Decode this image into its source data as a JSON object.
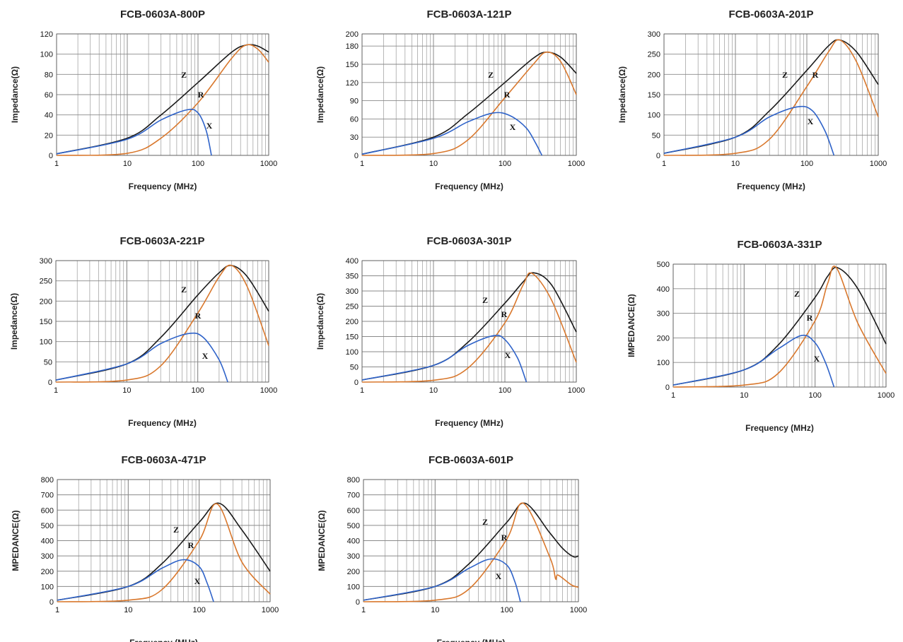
{
  "chart_data": [
    {
      "type": "line",
      "title": "FCB-0603A-800P",
      "xlabel": "Frequency (MHz)",
      "ylabel": "Impedance(Ω)",
      "x_scale": "log",
      "xlim": [
        1,
        1000
      ],
      "ylim": [
        0,
        120
      ],
      "xticks": [
        1,
        10,
        100,
        1000
      ],
      "yticks": [
        0,
        20,
        40,
        60,
        80,
        100,
        120
      ],
      "grid": true,
      "series": [
        {
          "name": "Z",
          "color": "#1a1a1a",
          "x": [
            1,
            10,
            30,
            100,
            300,
            480,
            700,
            1000
          ],
          "y": [
            1.5,
            17,
            40,
            72,
            102,
            109,
            108,
            102
          ]
        },
        {
          "name": "R",
          "color": "#d9782d",
          "x": [
            1,
            10,
            30,
            100,
            300,
            480,
            700,
            1000
          ],
          "y": [
            0,
            2,
            17,
            52,
            96,
            109,
            105,
            92
          ]
        },
        {
          "name": "X",
          "color": "#2f63c9",
          "x": [
            1,
            10,
            30,
            70,
            100,
            130,
            155
          ],
          "y": [
            1.5,
            16,
            35,
            45,
            42,
            25,
            0
          ]
        }
      ]
    },
    {
      "type": "line",
      "title": "FCB-0603A-121P",
      "xlabel": "Frequency (MHz)",
      "ylabel": "Impedance(Ω)",
      "x_scale": "log",
      "xlim": [
        1,
        1000
      ],
      "ylim": [
        0,
        200
      ],
      "xticks": [
        1,
        10,
        100,
        1000
      ],
      "yticks": [
        0,
        30,
        60,
        90,
        120,
        150,
        180,
        200
      ],
      "grid": true,
      "series": [
        {
          "name": "Z",
          "color": "#1a1a1a",
          "x": [
            1,
            10,
            30,
            100,
            250,
            380,
            600,
            1000
          ],
          "y": [
            2,
            30,
            68,
            120,
            160,
            170,
            162,
            135
          ]
        },
        {
          "name": "R",
          "color": "#d9782d",
          "x": [
            1,
            10,
            30,
            100,
            250,
            380,
            600,
            1000
          ],
          "y": [
            0,
            3,
            25,
            95,
            150,
            170,
            155,
            100
          ]
        },
        {
          "name": "X",
          "color": "#2f63c9",
          "x": [
            1,
            10,
            30,
            70,
            120,
            200,
            270,
            330
          ],
          "y": [
            2,
            28,
            55,
            70,
            65,
            45,
            20,
            0
          ]
        }
      ]
    },
    {
      "type": "line",
      "title": "FCB-0603A-201P",
      "xlabel": "Frequency (MHz)",
      "ylabel": "Impedance(Ω)",
      "x_scale": "log",
      "xlim": [
        1,
        1000
      ],
      "ylim": [
        0,
        300
      ],
      "xticks": [
        1,
        10,
        100,
        1000
      ],
      "yticks": [
        0,
        50,
        100,
        150,
        200,
        250,
        300
      ],
      "grid": true,
      "series": [
        {
          "name": "Z",
          "color": "#1a1a1a",
          "x": [
            1,
            10,
            30,
            100,
            200,
            290,
            500,
            1000
          ],
          "y": [
            5,
            45,
            110,
            210,
            270,
            285,
            255,
            175
          ]
        },
        {
          "name": "R",
          "color": "#d9782d",
          "x": [
            1,
            10,
            30,
            100,
            200,
            290,
            500,
            1000
          ],
          "y": [
            0,
            5,
            40,
            170,
            255,
            285,
            230,
            95
          ]
        },
        {
          "name": "X",
          "color": "#2f63c9",
          "x": [
            1,
            10,
            30,
            75,
            120,
            180,
            240
          ],
          "y": [
            5,
            45,
            95,
            120,
            110,
            60,
            0
          ]
        }
      ]
    },
    {
      "type": "line",
      "title": "FCB-0603A-221P",
      "xlabel": "Frequency (MHz)",
      "ylabel": "Impedance(Ω)",
      "x_scale": "log",
      "xlim": [
        1,
        1000
      ],
      "ylim": [
        0,
        300
      ],
      "xticks": [
        1,
        10,
        100,
        1000
      ],
      "yticks": [
        0,
        50,
        100,
        150,
        200,
        250,
        300
      ],
      "grid": true,
      "series": [
        {
          "name": "Z",
          "color": "#1a1a1a",
          "x": [
            1,
            10,
            30,
            100,
            200,
            300,
            500,
            1000
          ],
          "y": [
            5,
            45,
            110,
            215,
            270,
            288,
            260,
            175
          ]
        },
        {
          "name": "R",
          "color": "#d9782d",
          "x": [
            1,
            10,
            30,
            100,
            200,
            300,
            500,
            1000
          ],
          "y": [
            0,
            5,
            40,
            170,
            260,
            288,
            235,
            90
          ]
        },
        {
          "name": "X",
          "color": "#2f63c9",
          "x": [
            1,
            10,
            30,
            75,
            120,
            200,
            265
          ],
          "y": [
            5,
            45,
            95,
            120,
            110,
            55,
            0
          ]
        }
      ]
    },
    {
      "type": "line",
      "title": "FCB-0603A-301P",
      "xlabel": "Frequency (MHz)",
      "ylabel": "Impedance(Ω)",
      "x_scale": "log",
      "xlim": [
        1,
        1000
      ],
      "ylim": [
        0,
        400
      ],
      "xticks": [
        1,
        10,
        100,
        1000
      ],
      "yticks": [
        0,
        50,
        100,
        150,
        200,
        250,
        300,
        350,
        400
      ],
      "grid": true,
      "series": [
        {
          "name": "Z",
          "color": "#1a1a1a",
          "x": [
            1,
            10,
            30,
            100,
            180,
            250,
            450,
            1000
          ],
          "y": [
            7,
            55,
            130,
            260,
            330,
            360,
            320,
            165
          ]
        },
        {
          "name": "R",
          "color": "#d9782d",
          "x": [
            1,
            10,
            30,
            100,
            180,
            240,
            450,
            1000
          ],
          "y": [
            0,
            6,
            45,
            195,
            320,
            358,
            270,
            65
          ]
        },
        {
          "name": "X",
          "color": "#2f63c9",
          "x": [
            1,
            10,
            30,
            70,
            100,
            150,
            200
          ],
          "y": [
            7,
            55,
            120,
            153,
            140,
            80,
            0
          ]
        }
      ]
    },
    {
      "type": "line",
      "title": "FCB-0603A-331P",
      "xlabel": "Frequency (MHz)",
      "ylabel": "IMPEDANCE(Ω)",
      "x_scale": "log",
      "xlim": [
        1,
        1000
      ],
      "ylim": [
        0,
        500
      ],
      "xticks": [
        1,
        10,
        100,
        1000
      ],
      "yticks": [
        0,
        100,
        200,
        300,
        400,
        500
      ],
      "grid": true,
      "series": [
        {
          "name": "Z",
          "color": "#1a1a1a",
          "x": [
            1,
            10,
            30,
            100,
            150,
            210,
            400,
            1000
          ],
          "y": [
            8,
            70,
            170,
            365,
            450,
            485,
            400,
            175
          ]
        },
        {
          "name": "R",
          "color": "#d9782d",
          "x": [
            1,
            10,
            30,
            100,
            150,
            200,
            400,
            1000
          ],
          "y": [
            0,
            8,
            55,
            270,
            420,
            485,
            260,
            55
          ]
        },
        {
          "name": "X",
          "color": "#2f63c9",
          "x": [
            1,
            10,
            30,
            65,
            100,
            140,
            185
          ],
          "y": [
            8,
            70,
            155,
            210,
            180,
            100,
            0
          ]
        }
      ]
    },
    {
      "type": "line",
      "title": "FCB-0603A-471P",
      "xlabel": "Frequency (MHz)",
      "ylabel": "MPEDANCE(Ω)",
      "x_scale": "log",
      "xlim": [
        1,
        1000
      ],
      "ylim": [
        0,
        800
      ],
      "xticks": [
        1,
        10,
        100,
        1000
      ],
      "yticks": [
        0,
        100,
        200,
        300,
        400,
        500,
        600,
        700,
        800
      ],
      "grid": true,
      "series": [
        {
          "name": "Z",
          "color": "#1a1a1a",
          "x": [
            1,
            10,
            30,
            100,
            190,
            400,
            1000
          ],
          "y": [
            10,
            100,
            250,
            520,
            645,
            470,
            200
          ]
        },
        {
          "name": "R",
          "color": "#d9782d",
          "x": [
            1,
            10,
            30,
            100,
            180,
            400,
            1000
          ],
          "y": [
            0,
            10,
            80,
            400,
            640,
            260,
            50
          ]
        },
        {
          "name": "X",
          "color": "#2f63c9",
          "x": [
            1,
            10,
            30,
            60,
            100,
            130,
            160
          ],
          "y": [
            10,
            100,
            220,
            275,
            230,
            120,
            0
          ]
        }
      ]
    },
    {
      "type": "line",
      "title": "FCB-0603A-601P",
      "xlabel": "Frequency (MHz)",
      "ylabel": "MPEDANCE(Ω)",
      "x_scale": "log",
      "xlim": [
        1,
        1000
      ],
      "ylim": [
        0,
        800
      ],
      "xticks": [
        1,
        10,
        100,
        1000
      ],
      "yticks": [
        0,
        100,
        200,
        300,
        400,
        500,
        600,
        700,
        800
      ],
      "grid": true,
      "series": [
        {
          "name": "Z",
          "color": "#1a1a1a",
          "x": [
            1,
            10,
            30,
            100,
            180,
            400,
            600,
            850,
            1000
          ],
          "y": [
            10,
            100,
            250,
            520,
            645,
            450,
            350,
            295,
            300
          ]
        },
        {
          "name": "R",
          "color": "#d9782d",
          "x": [
            1,
            10,
            30,
            100,
            170,
            400,
            480,
            520,
            800,
            1000
          ],
          "y": [
            0,
            10,
            85,
            410,
            645,
            290,
            150,
            175,
            110,
            95
          ]
        },
        {
          "name": "X",
          "color": "#2f63c9",
          "x": [
            1,
            10,
            30,
            60,
            100,
            130,
            155
          ],
          "y": [
            10,
            100,
            220,
            280,
            240,
            130,
            0
          ]
        }
      ]
    }
  ]
}
